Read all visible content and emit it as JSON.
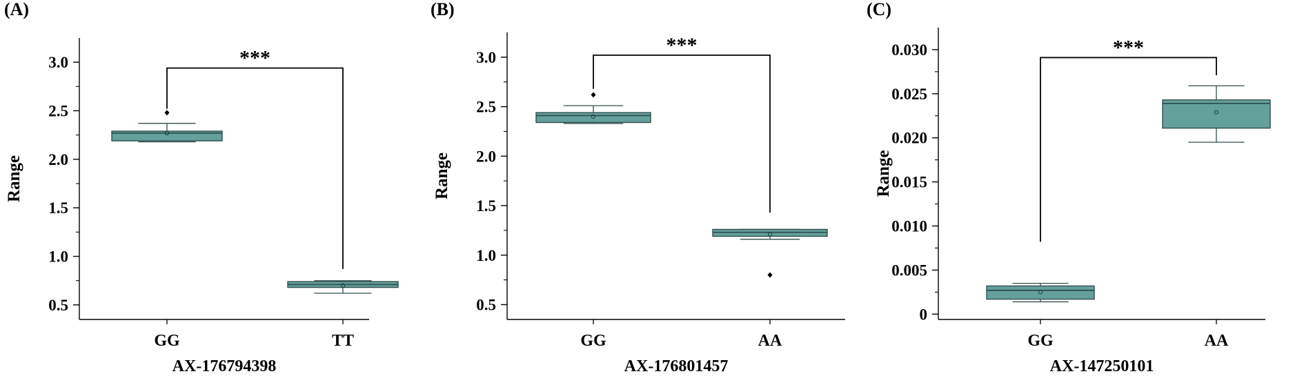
{
  "colors": {
    "box_fill": "#64a09c",
    "box_stroke": "#2f4f4d",
    "axis": "#000000"
  },
  "chart_data": [
    {
      "type": "box",
      "panel_label": "(A)",
      "xlabel": "AX-176794398",
      "ylabel": "Range",
      "ylim": [
        0.35,
        3.25
      ],
      "yticks": [
        0.5,
        1.0,
        1.5,
        2.0,
        2.5,
        3.0
      ],
      "ytick_labels": [
        "0.5",
        "1.0",
        "1.5",
        "2.0",
        "2.5",
        "3.0"
      ],
      "categories": [
        "GG",
        "TT"
      ],
      "boxes": [
        {
          "category": "GG",
          "whisker_low": 2.18,
          "q1": 2.19,
          "median": 2.27,
          "q3": 2.29,
          "whisker_high": 2.37,
          "mean": 2.27,
          "outliers": [
            2.48
          ]
        },
        {
          "category": "TT",
          "whisker_low": 0.62,
          "q1": 0.68,
          "median": 0.71,
          "q3": 0.74,
          "whisker_high": 0.75,
          "mean": 0.7,
          "outliers": []
        }
      ],
      "significance": {
        "label": "***",
        "y": 2.94,
        "left_drop": 2.52,
        "right_drop": 0.87
      }
    },
    {
      "type": "box",
      "panel_label": "(B)",
      "xlabel": "AX-176801457",
      "ylabel": "Range",
      "ylim": [
        0.35,
        3.25
      ],
      "yticks": [
        0.5,
        1.0,
        1.5,
        2.0,
        2.5,
        3.0
      ],
      "ytick_labels": [
        "0.5",
        "1.0",
        "1.5",
        "2.0",
        "2.5",
        "3.0"
      ],
      "categories": [
        "GG",
        "AA"
      ],
      "boxes": [
        {
          "category": "GG",
          "whisker_low": 2.33,
          "q1": 2.34,
          "median": 2.41,
          "q3": 2.44,
          "whisker_high": 2.51,
          "mean": 2.4,
          "outliers": [
            2.62
          ]
        },
        {
          "category": "AA",
          "whisker_low": 1.16,
          "q1": 1.19,
          "median": 1.23,
          "q3": 1.26,
          "whisker_high": 1.26,
          "mean": 1.21,
          "outliers": [
            0.8
          ]
        }
      ],
      "significance": {
        "label": "***",
        "y": 3.02,
        "left_drop": 2.68,
        "right_drop": 1.43
      }
    },
    {
      "type": "box",
      "panel_label": "(C)",
      "xlabel": "AX-147250101",
      "ylabel": "Range",
      "ylim": [
        -0.0006,
        0.0325
      ],
      "yticks": [
        0,
        0.005,
        0.01,
        0.015,
        0.02,
        0.025,
        0.03
      ],
      "ytick_labels": [
        "0",
        "0.005",
        "0.010",
        "0.015",
        "0.020",
        "0.025",
        "0.030"
      ],
      "categories": [
        "GG",
        "AA"
      ],
      "boxes": [
        {
          "category": "GG",
          "whisker_low": 0.0014,
          "q1": 0.0017,
          "median": 0.0027,
          "q3": 0.0032,
          "whisker_high": 0.0035,
          "mean": 0.0025,
          "outliers": []
        },
        {
          "category": "AA",
          "whisker_low": 0.0195,
          "q1": 0.0211,
          "median": 0.0239,
          "q3": 0.0243,
          "whisker_high": 0.0259,
          "mean": 0.0229,
          "outliers": []
        }
      ],
      "significance": {
        "label": "***",
        "y": 0.0291,
        "left_drop": 0.0082,
        "right_drop": 0.0271
      }
    }
  ]
}
